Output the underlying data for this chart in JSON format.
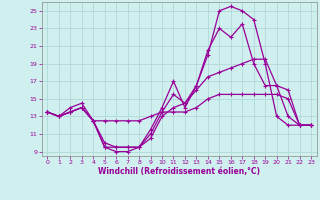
{
  "xlabel": "Windchill (Refroidissement éolien,°C)",
  "bg_color": "#cff0ee",
  "grid_color": "#b0d8d8",
  "line_color": "#990099",
  "xlim": [
    -0.5,
    23.5
  ],
  "ylim": [
    8.5,
    26
  ],
  "xticks": [
    0,
    1,
    2,
    3,
    4,
    5,
    6,
    7,
    8,
    9,
    10,
    11,
    12,
    13,
    14,
    15,
    16,
    17,
    18,
    19,
    20,
    21,
    22,
    23
  ],
  "yticks": [
    9,
    11,
    13,
    15,
    17,
    19,
    21,
    23,
    25
  ],
  "line1_x": [
    0,
    1,
    2,
    3,
    4,
    5,
    6,
    7,
    8,
    9,
    10,
    11,
    12,
    13,
    14,
    15,
    16,
    17,
    18,
    19,
    20,
    21,
    22,
    23
  ],
  "line1_y": [
    13.5,
    13.0,
    13.5,
    14.0,
    12.5,
    12.5,
    12.5,
    12.5,
    12.5,
    13.0,
    13.5,
    13.5,
    13.5,
    14.0,
    15.0,
    15.5,
    15.5,
    15.5,
    15.5,
    15.5,
    15.5,
    15.0,
    12.0,
    12.0
  ],
  "line2_x": [
    0,
    1,
    2,
    3,
    4,
    5,
    6,
    7,
    8,
    9,
    10,
    11,
    12,
    13,
    14,
    15,
    16,
    17,
    18,
    19,
    20,
    21,
    22,
    23
  ],
  "line2_y": [
    13.5,
    13.0,
    13.5,
    14.0,
    12.5,
    9.5,
    9.0,
    9.0,
    9.5,
    11.5,
    14.0,
    17.0,
    14.0,
    16.5,
    20.0,
    25.0,
    25.5,
    25.0,
    24.0,
    19.0,
    13.0,
    12.0,
    12.0,
    12.0
  ],
  "line3_x": [
    0,
    1,
    2,
    3,
    4,
    5,
    6,
    7,
    8,
    9,
    10,
    11,
    12,
    13,
    14,
    15,
    16,
    17,
    18,
    19,
    20,
    21,
    22,
    23
  ],
  "line3_y": [
    13.5,
    13.0,
    13.5,
    14.0,
    12.5,
    9.5,
    9.5,
    9.5,
    9.5,
    11.0,
    13.5,
    15.5,
    14.5,
    16.0,
    17.5,
    18.0,
    18.5,
    19.0,
    19.5,
    19.5,
    16.5,
    16.0,
    12.0,
    12.0
  ],
  "line4_x": [
    0,
    1,
    2,
    3,
    4,
    5,
    6,
    7,
    8,
    9,
    10,
    11,
    12,
    13,
    14,
    15,
    16,
    17,
    18,
    19,
    20,
    21,
    22,
    23
  ],
  "line4_y": [
    13.5,
    13.0,
    14.0,
    14.5,
    12.5,
    10.0,
    9.5,
    9.5,
    9.5,
    10.5,
    13.0,
    14.0,
    14.5,
    16.5,
    20.5,
    23.0,
    22.0,
    23.5,
    19.0,
    16.5,
    16.5,
    13.0,
    12.0,
    12.0
  ]
}
